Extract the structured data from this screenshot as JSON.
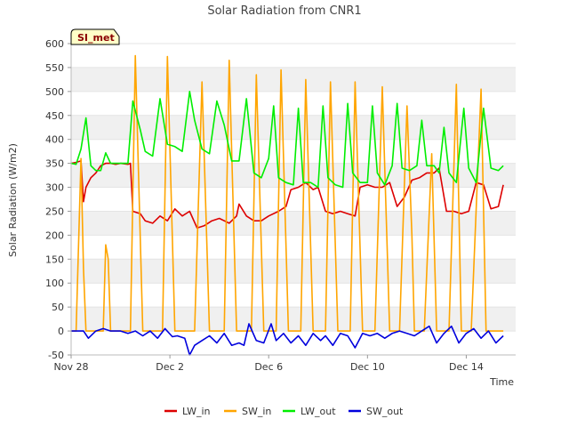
{
  "chart_data": {
    "type": "line",
    "title": "Solar Radiation from CNR1",
    "xlabel": "Time",
    "ylabel": "Solar Radiation (W/m2)",
    "badge": "SI_met",
    "ylim": [
      -50,
      600
    ],
    "yticks": [
      -50,
      0,
      50,
      100,
      150,
      200,
      250,
      300,
      350,
      400,
      450,
      500,
      550,
      600
    ],
    "xlim": [
      0,
      18
    ],
    "xticks": [
      {
        "value": 0,
        "label": "Nov 28"
      },
      {
        "value": 4,
        "label": "Dec 2"
      },
      {
        "value": 8,
        "label": "Dec 6"
      },
      {
        "value": 12,
        "label": "Dec 10"
      },
      {
        "value": 16,
        "label": "Dec 14"
      }
    ],
    "x_unit": "days since Nov 28",
    "grid": "horizontal bands",
    "legend_position": "bottom",
    "series": [
      {
        "name": "LW_in",
        "color": "#dd0000",
        "points": [
          [
            0,
            350
          ],
          [
            0.2,
            352
          ],
          [
            0.4,
            355
          ],
          [
            0.5,
            270
          ],
          [
            0.6,
            300
          ],
          [
            0.8,
            320
          ],
          [
            1.0,
            330
          ],
          [
            1.2,
            345
          ],
          [
            1.4,
            350
          ],
          [
            1.6,
            350
          ],
          [
            1.8,
            348
          ],
          [
            2.0,
            350
          ],
          [
            2.3,
            348
          ],
          [
            2.4,
            350
          ],
          [
            2.5,
            250
          ],
          [
            2.8,
            245
          ],
          [
            3.0,
            230
          ],
          [
            3.3,
            225
          ],
          [
            3.6,
            240
          ],
          [
            3.9,
            230
          ],
          [
            4.2,
            255
          ],
          [
            4.5,
            240
          ],
          [
            4.8,
            250
          ],
          [
            5.1,
            215
          ],
          [
            5.4,
            220
          ],
          [
            5.7,
            230
          ],
          [
            6.0,
            235
          ],
          [
            6.4,
            225
          ],
          [
            6.7,
            240
          ],
          [
            6.8,
            265
          ],
          [
            7.1,
            240
          ],
          [
            7.4,
            230
          ],
          [
            7.7,
            230
          ],
          [
            8.0,
            240
          ],
          [
            8.4,
            250
          ],
          [
            8.7,
            260
          ],
          [
            8.9,
            295
          ],
          [
            9.2,
            300
          ],
          [
            9.5,
            310
          ],
          [
            9.8,
            295
          ],
          [
            10.0,
            300
          ],
          [
            10.3,
            250
          ],
          [
            10.6,
            245
          ],
          [
            10.9,
            250
          ],
          [
            11.2,
            245
          ],
          [
            11.5,
            240
          ],
          [
            11.7,
            300
          ],
          [
            12.0,
            305
          ],
          [
            12.3,
            300
          ],
          [
            12.6,
            300
          ],
          [
            12.9,
            310
          ],
          [
            13.2,
            260
          ],
          [
            13.5,
            280
          ],
          [
            13.8,
            315
          ],
          [
            14.1,
            320
          ],
          [
            14.4,
            330
          ],
          [
            14.7,
            330
          ],
          [
            14.9,
            340
          ],
          [
            15.2,
            250
          ],
          [
            15.5,
            250
          ],
          [
            15.8,
            245
          ],
          [
            16.1,
            250
          ],
          [
            16.4,
            310
          ],
          [
            16.7,
            305
          ],
          [
            17.0,
            255
          ],
          [
            17.3,
            260
          ],
          [
            17.5,
            305
          ]
        ]
      },
      {
        "name": "SW_in",
        "color": "#ffa500",
        "points": [
          [
            0,
            0
          ],
          [
            0.2,
            0
          ],
          [
            0.4,
            360
          ],
          [
            0.5,
            130
          ],
          [
            0.6,
            0
          ],
          [
            1.0,
            0
          ],
          [
            1.3,
            0
          ],
          [
            1.4,
            180
          ],
          [
            1.5,
            150
          ],
          [
            1.6,
            0
          ],
          [
            2.0,
            0
          ],
          [
            2.2,
            0
          ],
          [
            2.4,
            0
          ],
          [
            2.6,
            575
          ],
          [
            2.9,
            0
          ],
          [
            3.0,
            0
          ],
          [
            3.5,
            0
          ],
          [
            3.7,
            0
          ],
          [
            3.9,
            573
          ],
          [
            4.2,
            0
          ],
          [
            4.5,
            0
          ],
          [
            4.8,
            0
          ],
          [
            5.0,
            0
          ],
          [
            5.3,
            520
          ],
          [
            5.6,
            0
          ],
          [
            6.0,
            0
          ],
          [
            6.2,
            0
          ],
          [
            6.4,
            565
          ],
          [
            6.7,
            0
          ],
          [
            7.0,
            0
          ],
          [
            7.3,
            0
          ],
          [
            7.5,
            535
          ],
          [
            7.8,
            0
          ],
          [
            8.1,
            0
          ],
          [
            8.3,
            0
          ],
          [
            8.5,
            545
          ],
          [
            8.8,
            0
          ],
          [
            9.0,
            0
          ],
          [
            9.3,
            0
          ],
          [
            9.5,
            525
          ],
          [
            9.8,
            0
          ],
          [
            10.1,
            0
          ],
          [
            10.3,
            0
          ],
          [
            10.5,
            520
          ],
          [
            10.8,
            0
          ],
          [
            11.0,
            0
          ],
          [
            11.3,
            0
          ],
          [
            11.5,
            520
          ],
          [
            11.8,
            0
          ],
          [
            12.0,
            0
          ],
          [
            12.3,
            0
          ],
          [
            12.6,
            510
          ],
          [
            12.9,
            0
          ],
          [
            13.1,
            0
          ],
          [
            13.3,
            0
          ],
          [
            13.6,
            470
          ],
          [
            13.8,
            200
          ],
          [
            13.9,
            0
          ],
          [
            14.1,
            0
          ],
          [
            14.3,
            0
          ],
          [
            14.6,
            370
          ],
          [
            14.8,
            0
          ],
          [
            15.0,
            0
          ],
          [
            15.3,
            0
          ],
          [
            15.6,
            515
          ],
          [
            15.8,
            0
          ],
          [
            16.0,
            0
          ],
          [
            16.2,
            0
          ],
          [
            16.6,
            505
          ],
          [
            16.8,
            0
          ],
          [
            17.0,
            0
          ],
          [
            17.3,
            0
          ],
          [
            17.5,
            0
          ]
        ]
      },
      {
        "name": "LW_out",
        "color": "#00ee00",
        "points": [
          [
            0,
            350
          ],
          [
            0.2,
            348
          ],
          [
            0.4,
            380
          ],
          [
            0.6,
            445
          ],
          [
            0.8,
            345
          ],
          [
            1.0,
            335
          ],
          [
            1.2,
            335
          ],
          [
            1.4,
            372
          ],
          [
            1.6,
            350
          ],
          [
            1.8,
            350
          ],
          [
            2.0,
            350
          ],
          [
            2.3,
            350
          ],
          [
            2.5,
            480
          ],
          [
            2.8,
            420
          ],
          [
            3.0,
            375
          ],
          [
            3.3,
            365
          ],
          [
            3.6,
            485
          ],
          [
            3.9,
            390
          ],
          [
            4.2,
            385
          ],
          [
            4.5,
            375
          ],
          [
            4.8,
            500
          ],
          [
            5.0,
            440
          ],
          [
            5.3,
            380
          ],
          [
            5.6,
            370
          ],
          [
            5.9,
            480
          ],
          [
            6.2,
            430
          ],
          [
            6.5,
            355
          ],
          [
            6.8,
            355
          ],
          [
            7.1,
            485
          ],
          [
            7.4,
            330
          ],
          [
            7.7,
            320
          ],
          [
            8.0,
            360
          ],
          [
            8.2,
            470
          ],
          [
            8.4,
            320
          ],
          [
            8.7,
            310
          ],
          [
            9.0,
            305
          ],
          [
            9.2,
            465
          ],
          [
            9.4,
            310
          ],
          [
            9.7,
            310
          ],
          [
            10.0,
            300
          ],
          [
            10.2,
            470
          ],
          [
            10.4,
            320
          ],
          [
            10.7,
            305
          ],
          [
            11.0,
            300
          ],
          [
            11.2,
            475
          ],
          [
            11.4,
            330
          ],
          [
            11.7,
            310
          ],
          [
            12.0,
            310
          ],
          [
            12.2,
            470
          ],
          [
            12.4,
            330
          ],
          [
            12.7,
            305
          ],
          [
            13.0,
            345
          ],
          [
            13.2,
            475
          ],
          [
            13.4,
            340
          ],
          [
            13.7,
            335
          ],
          [
            14.0,
            345
          ],
          [
            14.2,
            440
          ],
          [
            14.4,
            345
          ],
          [
            14.7,
            345
          ],
          [
            14.9,
            330
          ],
          [
            15.1,
            425
          ],
          [
            15.3,
            330
          ],
          [
            15.6,
            310
          ],
          [
            15.9,
            465
          ],
          [
            16.1,
            340
          ],
          [
            16.4,
            310
          ],
          [
            16.7,
            465
          ],
          [
            17.0,
            340
          ],
          [
            17.3,
            335
          ],
          [
            17.5,
            345
          ]
        ]
      },
      {
        "name": "SW_out",
        "color": "#0000dd",
        "points": [
          [
            0,
            0
          ],
          [
            0.5,
            0
          ],
          [
            0.7,
            -15
          ],
          [
            1.0,
            0
          ],
          [
            1.3,
            5
          ],
          [
            1.6,
            0
          ],
          [
            2.0,
            0
          ],
          [
            2.3,
            -5
          ],
          [
            2.6,
            0
          ],
          [
            2.9,
            -10
          ],
          [
            3.2,
            0
          ],
          [
            3.5,
            -15
          ],
          [
            3.8,
            5
          ],
          [
            4.1,
            -12
          ],
          [
            4.3,
            -10
          ],
          [
            4.6,
            -15
          ],
          [
            4.8,
            -50
          ],
          [
            5.0,
            -30
          ],
          [
            5.3,
            -20
          ],
          [
            5.6,
            -10
          ],
          [
            5.9,
            -25
          ],
          [
            6.2,
            -5
          ],
          [
            6.5,
            -30
          ],
          [
            6.8,
            -25
          ],
          [
            7.0,
            -30
          ],
          [
            7.2,
            15
          ],
          [
            7.5,
            -20
          ],
          [
            7.8,
            -25
          ],
          [
            8.1,
            15
          ],
          [
            8.3,
            -20
          ],
          [
            8.6,
            -5
          ],
          [
            8.9,
            -25
          ],
          [
            9.2,
            -10
          ],
          [
            9.5,
            -30
          ],
          [
            9.8,
            -5
          ],
          [
            10.1,
            -20
          ],
          [
            10.3,
            -10
          ],
          [
            10.6,
            -30
          ],
          [
            10.9,
            -5
          ],
          [
            11.2,
            -10
          ],
          [
            11.5,
            -35
          ],
          [
            11.8,
            -5
          ],
          [
            12.1,
            -10
          ],
          [
            12.4,
            -5
          ],
          [
            12.7,
            -15
          ],
          [
            13.0,
            -5
          ],
          [
            13.3,
            0
          ],
          [
            13.6,
            -5
          ],
          [
            13.9,
            -10
          ],
          [
            14.2,
            0
          ],
          [
            14.5,
            10
          ],
          [
            14.8,
            -25
          ],
          [
            15.1,
            -5
          ],
          [
            15.4,
            10
          ],
          [
            15.7,
            -25
          ],
          [
            16.0,
            -5
          ],
          [
            16.3,
            5
          ],
          [
            16.6,
            -15
          ],
          [
            16.9,
            0
          ],
          [
            17.2,
            -25
          ],
          [
            17.5,
            -10
          ]
        ]
      }
    ]
  }
}
